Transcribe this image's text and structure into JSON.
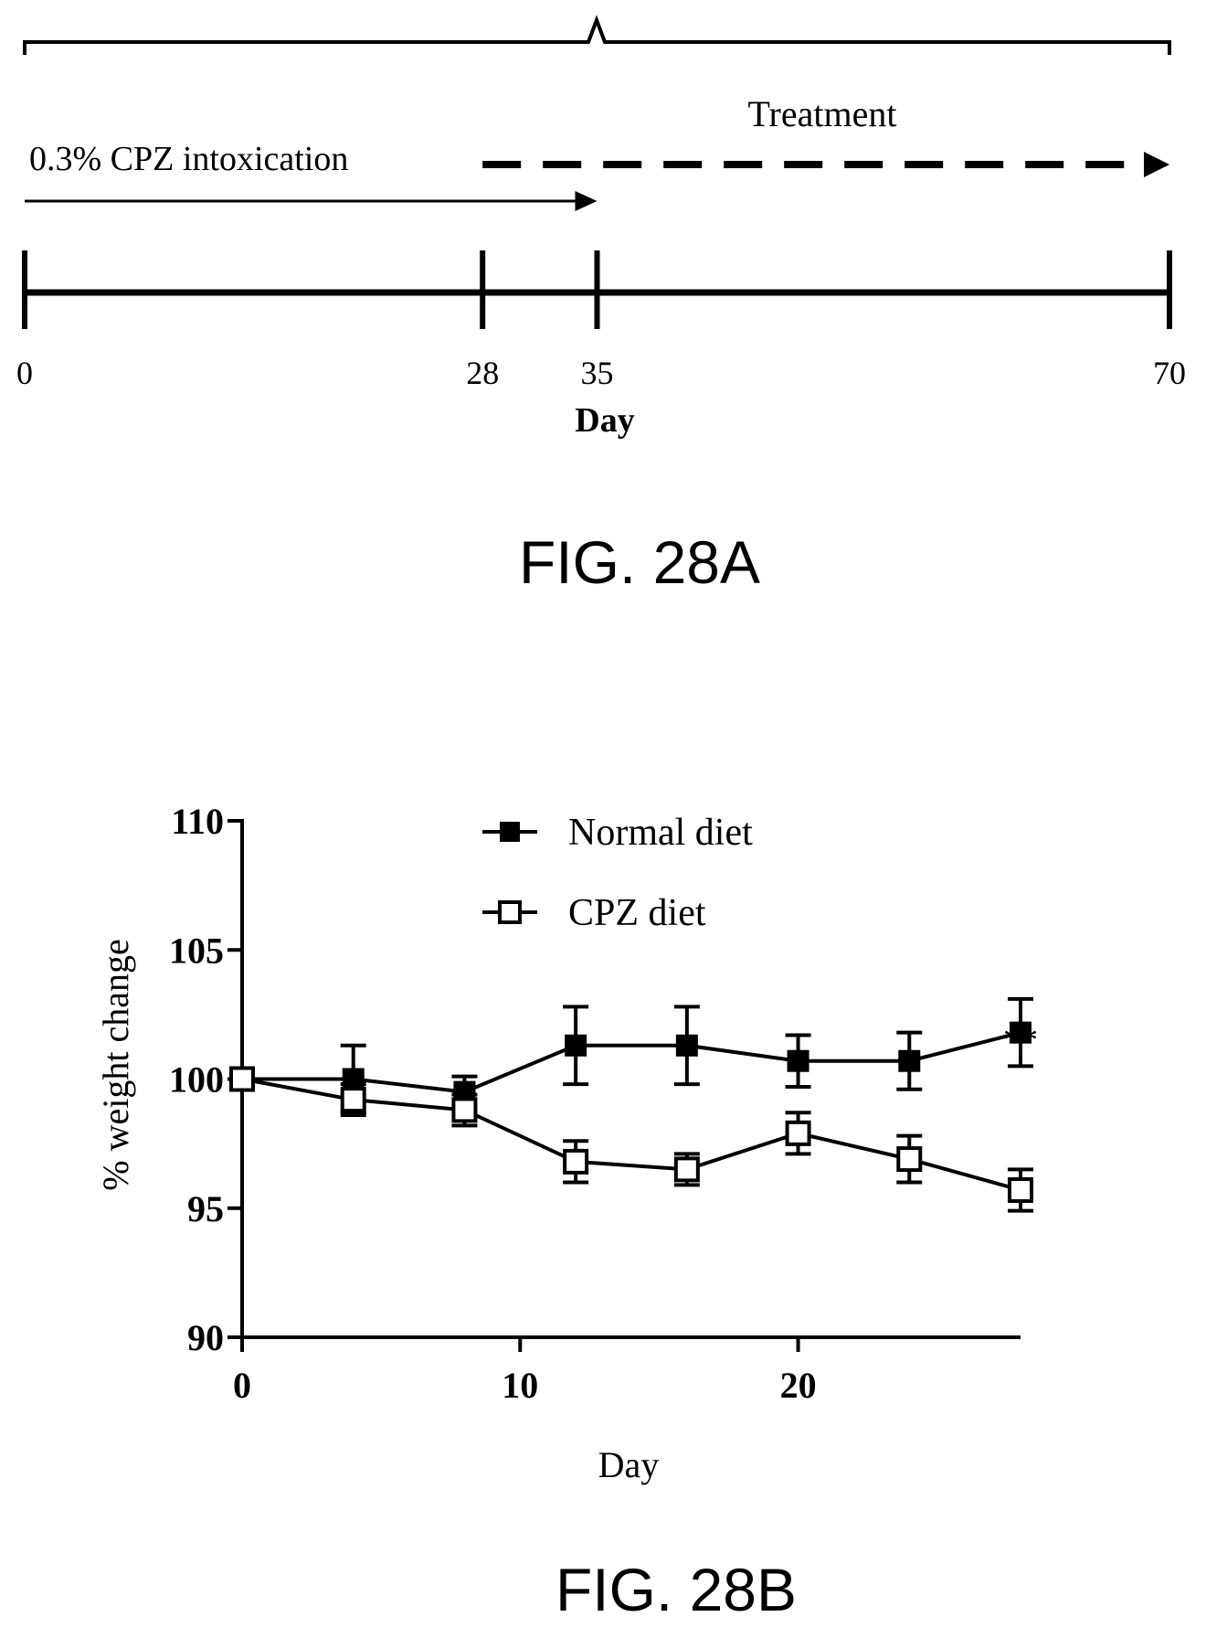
{
  "timeline": {
    "intoxication_label": "0.3% CPZ intoxication",
    "treatment_label": "Treatment",
    "axis_label": "Day",
    "ticks": [
      {
        "value": 0,
        "label": "0"
      },
      {
        "value": 28,
        "label": "28"
      },
      {
        "value": 35,
        "label": "35"
      },
      {
        "value": 70,
        "label": "70"
      }
    ],
    "intoxication_range": [
      0,
      35
    ],
    "treatment_range": [
      28,
      70
    ],
    "range": [
      0,
      70
    ]
  },
  "captions": {
    "fig_a": "FIG. 28A",
    "fig_b": "FIG. 28B"
  },
  "chart_data": {
    "type": "line",
    "title": "",
    "xlabel": "Day",
    "ylabel": "% weight change",
    "xlim": [
      0,
      28
    ],
    "ylim": [
      90,
      110
    ],
    "xticks": [
      0,
      10,
      20
    ],
    "yticks": [
      90,
      95,
      100,
      105,
      110
    ],
    "grid": false,
    "legend_position": "top-center",
    "x": [
      0,
      4,
      8,
      12,
      16,
      20,
      24,
      28
    ],
    "series": [
      {
        "name": "Normal diet",
        "marker": "filled-square",
        "color": "#000000",
        "values": [
          100.0,
          100.0,
          99.5,
          101.3,
          101.3,
          100.7,
          100.7,
          101.8
        ],
        "errors": [
          0.2,
          1.3,
          0.6,
          1.5,
          1.5,
          1.0,
          1.1,
          1.3
        ]
      },
      {
        "name": "CPZ diet",
        "marker": "open-square",
        "color": "#000000",
        "values": [
          100.0,
          99.2,
          98.8,
          96.8,
          96.5,
          97.9,
          96.9,
          95.7
        ],
        "errors": [
          0.2,
          0.6,
          0.6,
          0.8,
          0.6,
          0.8,
          0.9,
          0.8
        ]
      }
    ],
    "annotations": [
      {
        "text": "**",
        "x": 28,
        "y": 101.3
      }
    ]
  }
}
